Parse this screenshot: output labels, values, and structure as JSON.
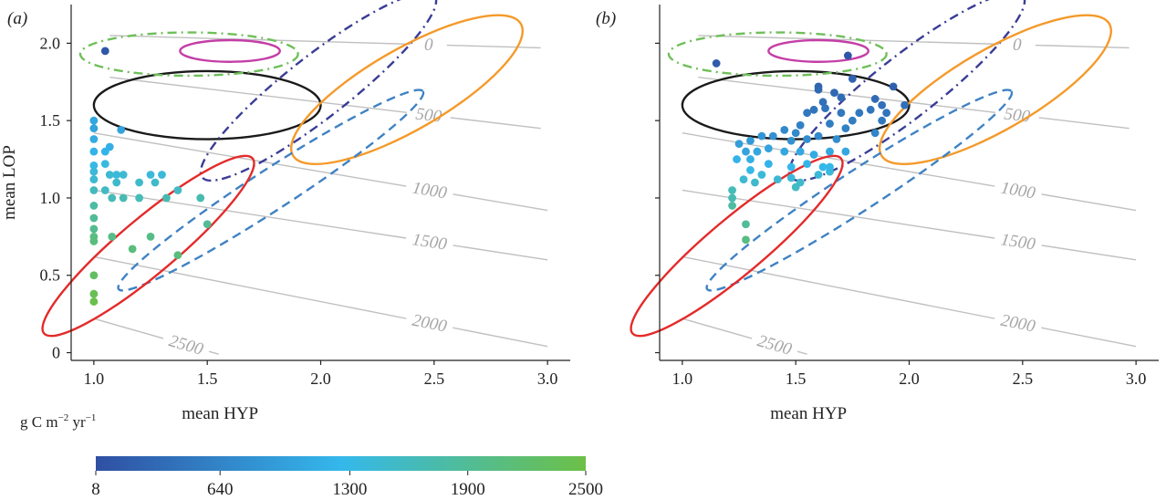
{
  "figure": {
    "colors": {
      "contour": "#c0c0c0",
      "contour_label": "#a6a6a6",
      "axis": "#222222",
      "colorbar_low": "#2f4fa2",
      "colorbar_mid": "#34b8ec",
      "colorbar_high": "#6cc046"
    },
    "colorbar": {
      "label_main": "g C m",
      "label_exp1": "−2",
      "label_mid": " yr",
      "label_exp2": "−1",
      "range": [
        8,
        2500
      ],
      "tick_labels": [
        "8",
        "640",
        "1300",
        "1900",
        "2500"
      ],
      "tick_values": [
        8,
        640,
        1300,
        1900,
        2500
      ]
    },
    "ellipses": [
      {
        "cx": 1.5,
        "cy": 1.6,
        "rx": 0.5,
        "ry": 0.22,
        "angle": 0,
        "color": "#1a1a1a",
        "dash": "solid"
      },
      {
        "cx": 1.6,
        "cy": 1.95,
        "rx": 0.22,
        "ry": 0.07,
        "angle": 0,
        "color": "#c43ea6",
        "dash": "solid"
      },
      {
        "cx": 1.42,
        "cy": 1.93,
        "rx": 0.48,
        "ry": 0.14,
        "angle": 0,
        "color": "#6fbf5a",
        "dash": "dashdot"
      },
      {
        "cx": 1.99,
        "cy": 1.72,
        "rx": 0.65,
        "ry": 0.2,
        "angle": 38,
        "color": "#3a3d95",
        "dash": "dashdot"
      },
      {
        "cx": 2.38,
        "cy": 1.7,
        "rx": 0.58,
        "ry": 0.26,
        "angle": 30,
        "color": "#f49a2a",
        "dash": "solid"
      },
      {
        "cx": 1.78,
        "cy": 1.05,
        "rx": 0.8,
        "ry": 0.13,
        "angle": 33,
        "color": "#3f82c4",
        "dash": "dashed"
      },
      {
        "cx": 1.24,
        "cy": 0.69,
        "rx": 0.6,
        "ry": 0.18,
        "angle": 40,
        "color": "#e42a2a",
        "dash": "solid"
      }
    ]
  },
  "chart_data": [
    {
      "panel_label": "(a)",
      "type": "scatter",
      "xlabel": "mean HYP",
      "ylabel": "mean LOP",
      "xlim": [
        0.9,
        3.1
      ],
      "ylim": [
        -0.05,
        2.25
      ],
      "x_ticks": [
        1.0,
        1.5,
        2.0,
        2.5,
        3.0
      ],
      "x_tick_labels": [
        "1.0",
        "1.5",
        "2.0",
        "2.5",
        "3.0"
      ],
      "y_ticks": [
        0,
        0.5,
        1.0,
        1.5,
        2.0
      ],
      "y_tick_labels": [
        "0",
        "0.5",
        "1.0",
        "1.5",
        "2.0"
      ],
      "contours": [
        {
          "label": "0",
          "x0": 1.07,
          "y0": 2.05,
          "x1": 2.97,
          "y1": 1.97
        },
        {
          "label": "500",
          "x0": 1.07,
          "y0": 1.78,
          "x1": 2.97,
          "y1": 1.45
        },
        {
          "label": "1000",
          "x0": 1.0,
          "y0": 1.42,
          "x1": 3.0,
          "y1": 0.92
        },
        {
          "label": "1500",
          "x0": 1.0,
          "y0": 1.05,
          "x1": 3.0,
          "y1": 0.6
        },
        {
          "label": "2000",
          "x0": 1.0,
          "y0": 0.62,
          "x1": 3.0,
          "y1": 0.04
        },
        {
          "label": "2500",
          "x0": 1.0,
          "y0": 0.22,
          "x1": 1.55,
          "y1": -0.01
        }
      ],
      "points": [
        {
          "x": 1.05,
          "y": 1.95,
          "v": 100
        },
        {
          "x": 1.0,
          "y": 1.5,
          "v": 1050
        },
        {
          "x": 1.0,
          "y": 1.45,
          "v": 1000
        },
        {
          "x": 1.0,
          "y": 1.38,
          "v": 1100
        },
        {
          "x": 1.0,
          "y": 1.3,
          "v": 1200
        },
        {
          "x": 1.0,
          "y": 1.21,
          "v": 1300
        },
        {
          "x": 1.0,
          "y": 1.17,
          "v": 1400
        },
        {
          "x": 1.0,
          "y": 1.12,
          "v": 1450
        },
        {
          "x": 1.0,
          "y": 1.05,
          "v": 1600
        },
        {
          "x": 1.0,
          "y": 0.95,
          "v": 1800
        },
        {
          "x": 1.0,
          "y": 0.87,
          "v": 1900
        },
        {
          "x": 1.0,
          "y": 0.8,
          "v": 1950
        },
        {
          "x": 1.0,
          "y": 0.75,
          "v": 2050
        },
        {
          "x": 1.0,
          "y": 0.72,
          "v": 2100
        },
        {
          "x": 1.0,
          "y": 0.5,
          "v": 2300
        },
        {
          "x": 1.0,
          "y": 0.38,
          "v": 2400
        },
        {
          "x": 1.0,
          "y": 0.33,
          "v": 2450
        },
        {
          "x": 1.05,
          "y": 1.3,
          "v": 1200
        },
        {
          "x": 1.07,
          "y": 1.33,
          "v": 1150
        },
        {
          "x": 1.05,
          "y": 1.22,
          "v": 1350
        },
        {
          "x": 1.07,
          "y": 1.15,
          "v": 1450
        },
        {
          "x": 1.1,
          "y": 1.1,
          "v": 1500
        },
        {
          "x": 1.12,
          "y": 1.44,
          "v": 1000
        },
        {
          "x": 1.05,
          "y": 1.05,
          "v": 1550
        },
        {
          "x": 1.1,
          "y": 1.15,
          "v": 1400
        },
        {
          "x": 1.13,
          "y": 1.15,
          "v": 1450
        },
        {
          "x": 1.08,
          "y": 1.0,
          "v": 1650
        },
        {
          "x": 1.13,
          "y": 1.0,
          "v": 1700
        },
        {
          "x": 1.2,
          "y": 1.1,
          "v": 1500
        },
        {
          "x": 1.2,
          "y": 1.0,
          "v": 1650
        },
        {
          "x": 1.25,
          "y": 1.15,
          "v": 1400
        },
        {
          "x": 1.3,
          "y": 1.15,
          "v": 1400
        },
        {
          "x": 1.27,
          "y": 1.1,
          "v": 1500
        },
        {
          "x": 1.32,
          "y": 1.0,
          "v": 1700
        },
        {
          "x": 1.37,
          "y": 1.05,
          "v": 1550
        },
        {
          "x": 1.47,
          "y": 1.0,
          "v": 1700
        },
        {
          "x": 1.5,
          "y": 0.83,
          "v": 1900
        },
        {
          "x": 1.08,
          "y": 0.75,
          "v": 2000
        },
        {
          "x": 1.17,
          "y": 0.67,
          "v": 2100
        },
        {
          "x": 1.25,
          "y": 0.75,
          "v": 2000
        },
        {
          "x": 1.37,
          "y": 0.63,
          "v": 2100
        }
      ]
    },
    {
      "panel_label": "(b)",
      "type": "scatter",
      "xlabel": "mean HYP",
      "ylabel": "",
      "xlim": [
        0.9,
        3.1
      ],
      "ylim": [
        -0.05,
        2.25
      ],
      "x_ticks": [
        1.0,
        1.5,
        2.0,
        2.5,
        3.0
      ],
      "x_tick_labels": [
        "1.0",
        "1.5",
        "2.0",
        "2.5",
        "3.0"
      ],
      "y_ticks": [
        0,
        0.5,
        1.0,
        1.5,
        2.0
      ],
      "y_tick_labels": [
        "",
        "",
        "",
        "",
        ""
      ],
      "contours": [
        {
          "label": "0",
          "x0": 1.07,
          "y0": 2.05,
          "x1": 2.97,
          "y1": 1.97
        },
        {
          "label": "500",
          "x0": 1.07,
          "y0": 1.78,
          "x1": 2.97,
          "y1": 1.45
        },
        {
          "label": "1000",
          "x0": 1.0,
          "y0": 1.42,
          "x1": 3.0,
          "y1": 0.92
        },
        {
          "label": "1500",
          "x0": 1.0,
          "y0": 1.05,
          "x1": 3.0,
          "y1": 0.6
        },
        {
          "label": "2000",
          "x0": 1.0,
          "y0": 0.62,
          "x1": 3.0,
          "y1": 0.04
        },
        {
          "label": "2500",
          "x0": 1.0,
          "y0": 0.22,
          "x1": 1.55,
          "y1": -0.01
        }
      ],
      "points": [
        {
          "x": 1.15,
          "y": 1.87,
          "v": 150
        },
        {
          "x": 1.73,
          "y": 1.92,
          "v": 100
        },
        {
          "x": 1.6,
          "y": 1.72,
          "v": 250
        },
        {
          "x": 1.6,
          "y": 1.7,
          "v": 300
        },
        {
          "x": 1.75,
          "y": 1.77,
          "v": 250
        },
        {
          "x": 1.67,
          "y": 1.68,
          "v": 300
        },
        {
          "x": 1.7,
          "y": 1.65,
          "v": 350
        },
        {
          "x": 1.62,
          "y": 1.62,
          "v": 400
        },
        {
          "x": 1.58,
          "y": 1.57,
          "v": 450
        },
        {
          "x": 1.55,
          "y": 1.55,
          "v": 500
        },
        {
          "x": 1.63,
          "y": 1.58,
          "v": 450
        },
        {
          "x": 1.7,
          "y": 1.55,
          "v": 500
        },
        {
          "x": 1.75,
          "y": 1.5,
          "v": 550
        },
        {
          "x": 1.78,
          "y": 1.55,
          "v": 500
        },
        {
          "x": 1.83,
          "y": 1.57,
          "v": 450
        },
        {
          "x": 1.85,
          "y": 1.64,
          "v": 350
        },
        {
          "x": 1.88,
          "y": 1.6,
          "v": 400
        },
        {
          "x": 1.9,
          "y": 1.55,
          "v": 450
        },
        {
          "x": 1.88,
          "y": 1.5,
          "v": 500
        },
        {
          "x": 1.93,
          "y": 1.72,
          "v": 200
        },
        {
          "x": 1.98,
          "y": 1.6,
          "v": 400
        },
        {
          "x": 1.85,
          "y": 1.42,
          "v": 650
        },
        {
          "x": 1.72,
          "y": 1.45,
          "v": 600
        },
        {
          "x": 1.65,
          "y": 1.48,
          "v": 550
        },
        {
          "x": 1.52,
          "y": 1.47,
          "v": 600
        },
        {
          "x": 1.5,
          "y": 1.42,
          "v": 700
        },
        {
          "x": 1.45,
          "y": 1.44,
          "v": 700
        },
        {
          "x": 1.4,
          "y": 1.4,
          "v": 800
        },
        {
          "x": 1.35,
          "y": 1.4,
          "v": 850
        },
        {
          "x": 1.3,
          "y": 1.37,
          "v": 900
        },
        {
          "x": 1.48,
          "y": 1.37,
          "v": 800
        },
        {
          "x": 1.55,
          "y": 1.38,
          "v": 750
        },
        {
          "x": 1.6,
          "y": 1.4,
          "v": 700
        },
        {
          "x": 1.68,
          "y": 1.38,
          "v": 750
        },
        {
          "x": 1.25,
          "y": 1.35,
          "v": 950
        },
        {
          "x": 1.28,
          "y": 1.3,
          "v": 1000
        },
        {
          "x": 1.33,
          "y": 1.3,
          "v": 1050
        },
        {
          "x": 1.38,
          "y": 1.32,
          "v": 1000
        },
        {
          "x": 1.45,
          "y": 1.3,
          "v": 1050
        },
        {
          "x": 1.52,
          "y": 1.3,
          "v": 1050
        },
        {
          "x": 1.58,
          "y": 1.28,
          "v": 1100
        },
        {
          "x": 1.65,
          "y": 1.3,
          "v": 1050
        },
        {
          "x": 1.72,
          "y": 1.3,
          "v": 1050
        },
        {
          "x": 1.3,
          "y": 1.25,
          "v": 1150
        },
        {
          "x": 1.38,
          "y": 1.22,
          "v": 1200
        },
        {
          "x": 1.48,
          "y": 1.2,
          "v": 1250
        },
        {
          "x": 1.55,
          "y": 1.22,
          "v": 1200
        },
        {
          "x": 1.62,
          "y": 1.2,
          "v": 1250
        },
        {
          "x": 1.24,
          "y": 1.25,
          "v": 1200
        },
        {
          "x": 1.3,
          "y": 1.18,
          "v": 1300
        },
        {
          "x": 1.35,
          "y": 1.15,
          "v": 1400
        },
        {
          "x": 1.42,
          "y": 1.12,
          "v": 1450
        },
        {
          "x": 1.48,
          "y": 1.13,
          "v": 1400
        },
        {
          "x": 1.52,
          "y": 1.1,
          "v": 1500
        },
        {
          "x": 1.32,
          "y": 1.1,
          "v": 1500
        },
        {
          "x": 1.6,
          "y": 1.15,
          "v": 1400
        },
        {
          "x": 1.65,
          "y": 1.17,
          "v": 1400
        },
        {
          "x": 1.5,
          "y": 1.07,
          "v": 1550
        },
        {
          "x": 1.27,
          "y": 1.12,
          "v": 1450
        },
        {
          "x": 1.22,
          "y": 1.05,
          "v": 1650
        },
        {
          "x": 1.22,
          "y": 1.0,
          "v": 1700
        },
        {
          "x": 1.22,
          "y": 0.95,
          "v": 1800
        },
        {
          "x": 1.28,
          "y": 0.83,
          "v": 1900
        },
        {
          "x": 1.28,
          "y": 0.73,
          "v": 2050
        },
        {
          "x": 1.65,
          "y": 1.2,
          "v": 1300
        }
      ]
    }
  ]
}
